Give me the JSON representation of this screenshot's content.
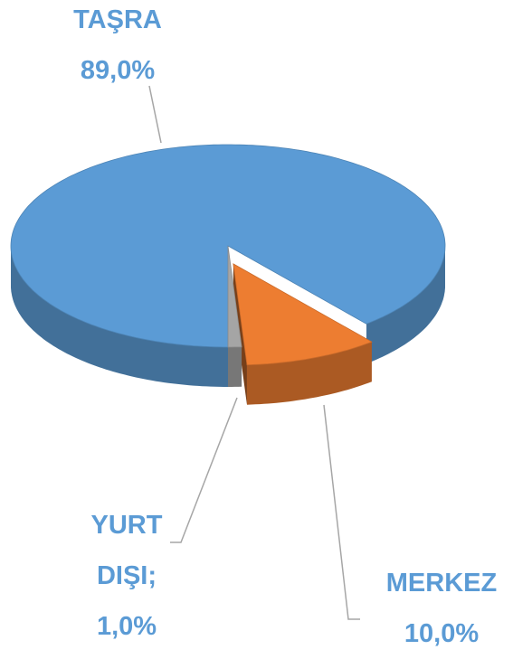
{
  "chart_data": {
    "type": "pie3d",
    "categories": [
      "TAŞRA",
      "MERKEZ",
      "YURT DIŞI;"
    ],
    "values": [
      89,
      10,
      1
    ],
    "value_labels": [
      "89,0%",
      "10,0%",
      "1,0%"
    ],
    "colors": [
      "#5b9bd5",
      "#ed7d31",
      "#a5a5a5"
    ]
  }
}
